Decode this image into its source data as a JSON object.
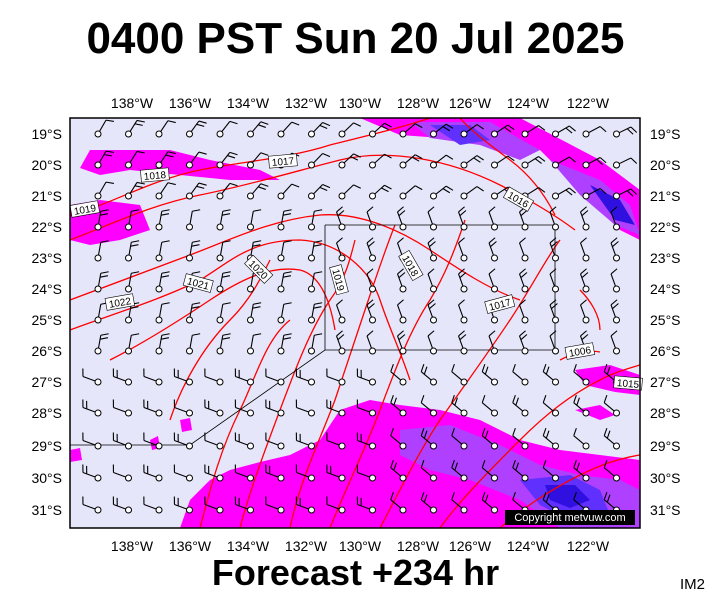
{
  "title": "0400 PST Sun 20 Jul 2025",
  "subtitle": "Forecast +234 hr",
  "image_code": "IM2",
  "copyright": "Copyright metvuw.com",
  "map": {
    "lon_labels": [
      "138°W",
      "136°W",
      "134°W",
      "132°W",
      "130°W",
      "128°W",
      "126°W",
      "124°W",
      "122°W"
    ],
    "lat_labels": [
      "19°S",
      "20°S",
      "21°S",
      "22°S",
      "23°S",
      "24°S",
      "25°S",
      "26°S",
      "27°S",
      "28°S",
      "29°S",
      "30°S",
      "31°S"
    ],
    "isobar_labels": [
      "1019",
      "1018",
      "1017",
      "1016",
      "1022",
      "1021",
      "1020",
      "1019",
      "1018",
      "1017",
      "1006",
      "1015"
    ],
    "colors": {
      "background": "#e6e6fa",
      "isobar": "#ff0000",
      "rain_light": "#ff00ff",
      "rain_medium": "#b040ff",
      "rain_heavy": "#6030ff",
      "rain_extreme": "#3010e0"
    }
  }
}
